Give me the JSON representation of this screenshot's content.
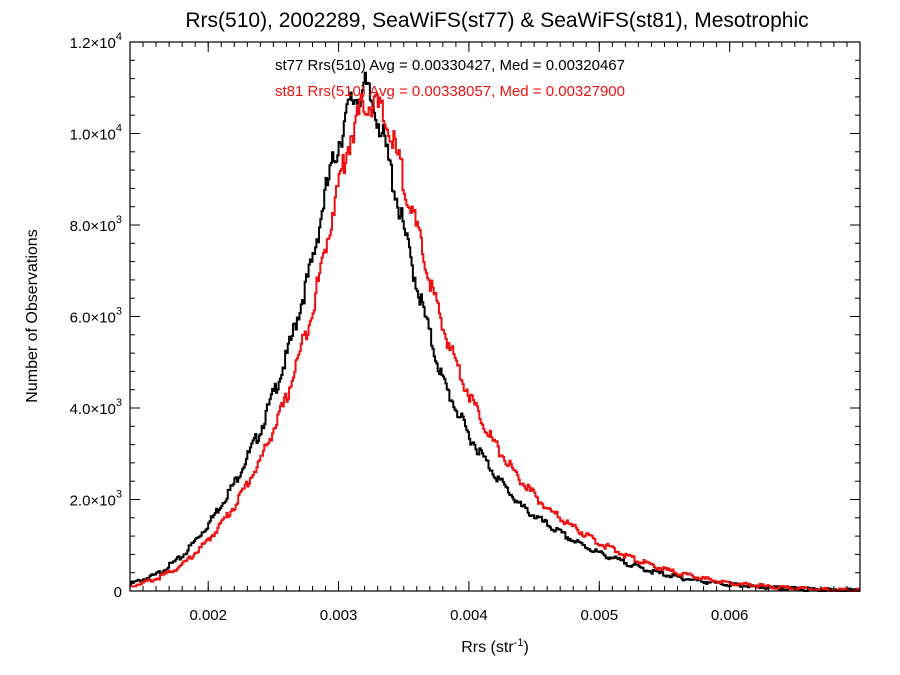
{
  "chart_data": {
    "type": "line",
    "title": "Rrs(510), 2002289, SeaWiFS(st77) & SeaWiFS(st81), Mesotrophic",
    "xlabel_base": "Rrs (str",
    "xlabel_sup": "-1",
    "xlabel_close": ")",
    "ylabel": "Number of Observations",
    "xlim": [
      0.0014,
      0.007
    ],
    "ylim": [
      0,
      12000
    ],
    "grid": false,
    "x_ticks": [
      {
        "value": 0.002,
        "label": "0.002"
      },
      {
        "value": 0.003,
        "label": "0.003"
      },
      {
        "value": 0.004,
        "label": "0.004"
      },
      {
        "value": 0.005,
        "label": "0.005"
      },
      {
        "value": 0.006,
        "label": "0.006"
      }
    ],
    "y_ticks": [
      {
        "value": 0,
        "mant": "0",
        "exp": ""
      },
      {
        "value": 2000,
        "mant": "2.0×10",
        "exp": "3"
      },
      {
        "value": 4000,
        "mant": "4.0×10",
        "exp": "3"
      },
      {
        "value": 6000,
        "mant": "6.0×10",
        "exp": "3"
      },
      {
        "value": 8000,
        "mant": "8.0×10",
        "exp": "3"
      },
      {
        "value": 10000,
        "mant": "1.0×10",
        "exp": "4"
      },
      {
        "value": 12000,
        "mant": "1.2×10",
        "exp": "4"
      }
    ],
    "series": [
      {
        "id": "st77",
        "color": "#000000",
        "stats_label": "st77 Rrs(510) Avg = 0.00330427, Med = 0.00320467",
        "x": [
          0.0014,
          0.0016,
          0.0018,
          0.002,
          0.0022,
          0.0024,
          0.0026,
          0.0028,
          0.0029,
          0.003,
          0.0031,
          0.0032,
          0.0033,
          0.0034,
          0.0035,
          0.0036,
          0.0037,
          0.0038,
          0.004,
          0.0042,
          0.0044,
          0.0046,
          0.0048,
          0.005,
          0.0052,
          0.0054,
          0.0056,
          0.0058,
          0.006,
          0.0062,
          0.0064,
          0.0066,
          0.0068,
          0.007
        ],
        "y": [
          150,
          350,
          750,
          1450,
          2350,
          3500,
          5100,
          7200,
          8700,
          9800,
          10700,
          11000,
          10400,
          9200,
          7900,
          6700,
          5600,
          4600,
          3400,
          2550,
          1850,
          1450,
          1100,
          830,
          620,
          430,
          300,
          210,
          140,
          90,
          55,
          35,
          20,
          10
        ]
      },
      {
        "id": "st81",
        "color": "#ee1111",
        "stats_label": "st81 Rrs(510) Avg = 0.00338057, Med = 0.00327900",
        "x": [
          0.0014,
          0.0016,
          0.0018,
          0.002,
          0.0022,
          0.0024,
          0.0026,
          0.0028,
          0.0029,
          0.003,
          0.0031,
          0.0032,
          0.0033,
          0.0034,
          0.0035,
          0.0036,
          0.0037,
          0.0038,
          0.004,
          0.0042,
          0.0044,
          0.0046,
          0.0048,
          0.005,
          0.0052,
          0.0054,
          0.0056,
          0.0058,
          0.006,
          0.0062,
          0.0064,
          0.0066,
          0.0068,
          0.007
        ],
        "y": [
          100,
          260,
          560,
          1100,
          1850,
          2850,
          4200,
          6150,
          7500,
          8900,
          10000,
          10700,
          10600,
          10000,
          9000,
          7900,
          6800,
          5750,
          4300,
          3200,
          2400,
          1800,
          1400,
          1050,
          780,
          560,
          390,
          270,
          180,
          120,
          75,
          45,
          25,
          12
        ]
      }
    ]
  }
}
